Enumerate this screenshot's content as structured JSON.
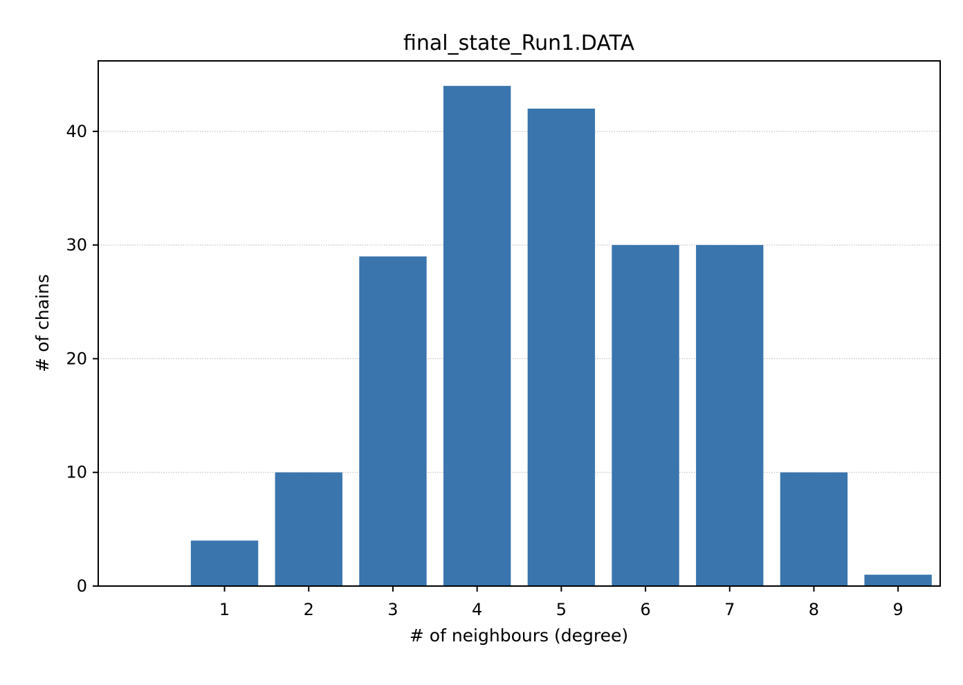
{
  "chart_data": {
    "type": "bar",
    "title": "final_state_Run1.DATA",
    "xlabel": "# of neighbours (degree)",
    "ylabel": "# of chains",
    "categories": [
      1,
      2,
      3,
      4,
      5,
      6,
      7,
      8,
      9
    ],
    "values": [
      4,
      10,
      29,
      44,
      42,
      30,
      30,
      10,
      1
    ],
    "xlim": [
      -0.5,
      9.5
    ],
    "ylim": [
      0,
      46.2
    ],
    "yticks": [
      0,
      10,
      20,
      30,
      40
    ],
    "xticks": [
      1,
      2,
      3,
      4,
      5,
      6,
      7,
      8,
      9
    ],
    "grid": "y-dotted",
    "bar_color": "#3a75ae",
    "grid_color": "#b0b0b0"
  }
}
